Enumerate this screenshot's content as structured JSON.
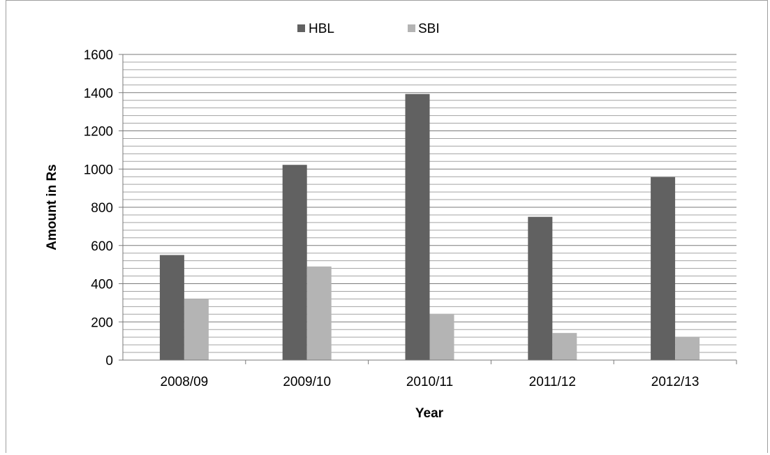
{
  "chart_data": {
    "type": "bar",
    "categories": [
      "2008/09",
      "2009/10",
      "2010/11",
      "2011/12",
      "2012/13"
    ],
    "series": [
      {
        "name": "HBL",
        "values": [
          550,
          1022,
          1393,
          750,
          958
        ],
        "color": "#616161"
      },
      {
        "name": "SBI",
        "values": [
          318,
          490,
          242,
          142,
          122
        ],
        "color": "#b4b4b4"
      }
    ],
    "title": "",
    "xlabel": "Year",
    "ylabel": "Amount in Rs",
    "ylim": [
      0,
      1600
    ],
    "yticks": [
      0,
      200,
      400,
      600,
      800,
      1000,
      1200,
      1400,
      1600
    ],
    "minor_grid_step": 40,
    "grid": true,
    "legend_position": "top-center"
  }
}
